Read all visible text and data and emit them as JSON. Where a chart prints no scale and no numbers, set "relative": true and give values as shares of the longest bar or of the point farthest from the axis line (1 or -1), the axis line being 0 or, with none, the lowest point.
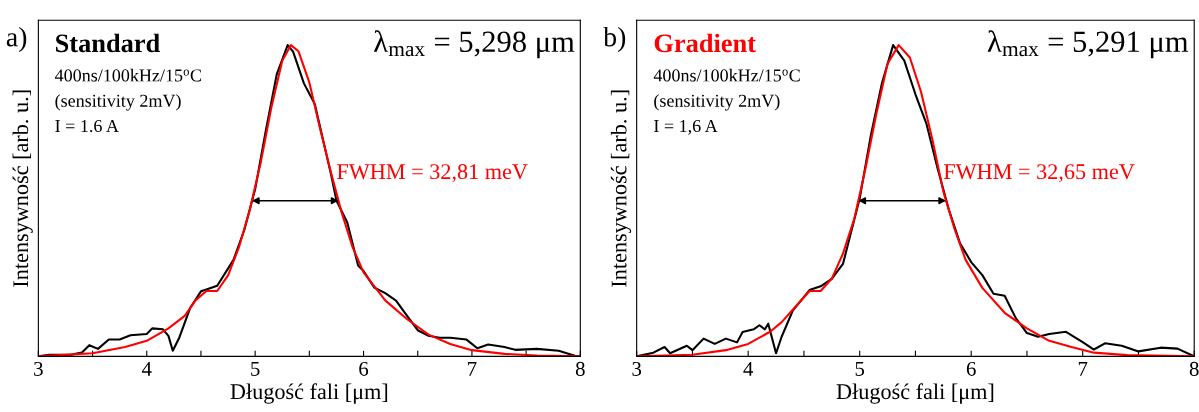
{
  "chart_data": [
    {
      "type": "line",
      "title": "Standard",
      "xlabel": "Długość fali [μm]",
      "ylabel": "Intensywność [arb. u.]",
      "relative": true,
      "xlim": [
        3,
        8
      ],
      "xticks": [
        3,
        {
          "value": 3.5,
          "label": null
        },
        4,
        {
          "value": 4.5,
          "label": null
        },
        5,
        {
          "value": 5.5,
          "label": null
        },
        6,
        {
          "value": 6.5,
          "label": null
        },
        7,
        {
          "value": 7.5,
          "label": null
        },
        8
      ],
      "annotations": [
        "a)",
        "400ns/100kHz/15$^{o}$C",
        "(sensitivity 2mV)",
        "I = 1.6 A",
        "λ$_{max}$ = 5,298 μm",
        {
          "text": "FWHM = 32,81 meV",
          "x": 5.75,
          "y": 0.5
        }
      ],
      "series": [
        {
          "color": "#000000",
          "x": [
            3.0,
            3.1,
            3.3,
            3.4,
            3.47,
            3.55,
            3.65,
            3.75,
            3.85,
            4.0,
            4.05,
            4.15,
            4.2,
            4.24,
            4.3,
            4.4,
            4.5,
            4.55,
            4.65,
            4.8,
            4.9,
            5.0,
            5.1,
            5.2,
            5.3,
            5.35,
            5.45,
            5.55,
            5.7,
            5.75,
            5.85,
            5.95,
            6.0,
            6.1,
            6.2,
            6.3,
            6.4,
            6.5,
            6.6,
            6.7,
            6.8,
            6.95,
            7.05,
            7.15,
            7.3,
            7.4,
            7.6,
            7.8,
            7.95,
            8.0
          ],
          "values": [
            0,
            0.005,
            0.005,
            0.012,
            0.036,
            0.024,
            0.054,
            0.054,
            0.068,
            0.072,
            0.09,
            0.087,
            0.066,
            0.018,
            0.06,
            0.155,
            0.209,
            0.215,
            0.227,
            0.31,
            0.406,
            0.537,
            0.728,
            0.907,
            1.0,
            0.979,
            0.877,
            0.811,
            0.585,
            0.501,
            0.43,
            0.292,
            0.274,
            0.221,
            0.203,
            0.179,
            0.131,
            0.084,
            0.066,
            0.06,
            0.06,
            0.054,
            0.026,
            0.038,
            0.03,
            0.021,
            0.024,
            0.018,
            0.002,
            0
          ]
        },
        {
          "color": "#ff0000",
          "x": [
            3.0,
            3.5,
            3.8,
            4.0,
            4.2,
            4.35,
            4.45,
            4.55,
            4.65,
            4.75,
            4.85,
            4.95,
            5.05,
            5.15,
            5.25,
            5.33,
            5.4,
            5.5,
            5.6,
            5.7,
            5.8,
            5.9,
            6.0,
            6.2,
            6.4,
            6.6,
            6.8,
            7.0,
            7.3,
            7.6,
            8.0
          ],
          "values": [
            0,
            0.01,
            0.03,
            0.05,
            0.09,
            0.13,
            0.18,
            0.21,
            0.21,
            0.26,
            0.35,
            0.47,
            0.62,
            0.8,
            0.95,
            1.0,
            0.98,
            0.88,
            0.73,
            0.59,
            0.46,
            0.35,
            0.27,
            0.18,
            0.12,
            0.07,
            0.04,
            0.02,
            0.008,
            0.003,
            0
          ]
        }
      ]
    },
    {
      "type": "line",
      "title": "Gradient",
      "xlabel": "Długość fali [μm]",
      "ylabel": "Intensywność [arb. u.]",
      "relative": true,
      "xlim": [
        3,
        8
      ],
      "xticks": [
        3,
        {
          "value": 3.5,
          "label": null
        },
        4,
        {
          "value": 4.5,
          "label": null
        },
        5,
        {
          "value": 5.5,
          "label": null
        },
        6,
        {
          "value": 6.5,
          "label": null
        },
        7,
        {
          "value": 7.5,
          "label": null
        },
        8
      ],
      "annotations": [
        "b)",
        "400ns/100kHz/15$^{o}$C",
        "(sensitivity 2mV)",
        "I = 1,6 A",
        "λ$_{max}$ = 5,291 μm",
        {
          "text": "FWHM = 32,65 meV",
          "x": 5.75,
          "y": 0.5
        }
      ],
      "series": [
        {
          "color": "#000000",
          "x": [
            3.0,
            3.15,
            3.25,
            3.3,
            3.45,
            3.5,
            3.6,
            3.7,
            3.8,
            3.9,
            3.95,
            4.05,
            4.1,
            4.15,
            4.18,
            4.25,
            4.3,
            4.4,
            4.55,
            4.65,
            4.75,
            4.85,
            5.0,
            5.1,
            5.2,
            5.3,
            5.4,
            5.5,
            5.6,
            5.7,
            5.8,
            5.9,
            6.0,
            6.1,
            6.2,
            6.3,
            6.4,
            6.5,
            6.6,
            6.7,
            6.85,
            7.0,
            7.1,
            7.2,
            7.35,
            7.5,
            7.7,
            7.85,
            8.0
          ],
          "values": [
            0,
            0.012,
            0.03,
            0.01,
            0.034,
            0.02,
            0.057,
            0.04,
            0.057,
            0.045,
            0.078,
            0.087,
            0.1,
            0.087,
            0.105,
            0.01,
            0.063,
            0.147,
            0.213,
            0.225,
            0.249,
            0.297,
            0.507,
            0.71,
            0.878,
            1.0,
            0.95,
            0.842,
            0.746,
            0.602,
            0.471,
            0.363,
            0.303,
            0.261,
            0.201,
            0.195,
            0.123,
            0.075,
            0.063,
            0.072,
            0.079,
            0.046,
            0.022,
            0.042,
            0.034,
            0.016,
            0.028,
            0.025,
            0
          ]
        },
        {
          "color": "#ff0000",
          "x": [
            3.0,
            3.5,
            3.8,
            4.0,
            4.2,
            4.3,
            4.45,
            4.55,
            4.65,
            4.75,
            4.85,
            4.95,
            5.05,
            5.15,
            5.25,
            5.35,
            5.45,
            5.55,
            5.65,
            5.75,
            5.85,
            5.95,
            6.1,
            6.3,
            6.5,
            6.7,
            6.9,
            7.1,
            7.4,
            8.0
          ],
          "values": [
            0,
            0.005,
            0.02,
            0.04,
            0.08,
            0.11,
            0.17,
            0.21,
            0.21,
            0.25,
            0.33,
            0.44,
            0.6,
            0.78,
            0.94,
            1.0,
            0.96,
            0.85,
            0.7,
            0.53,
            0.41,
            0.31,
            0.22,
            0.14,
            0.09,
            0.05,
            0.03,
            0.012,
            0.004,
            0
          ]
        }
      ]
    }
  ]
}
